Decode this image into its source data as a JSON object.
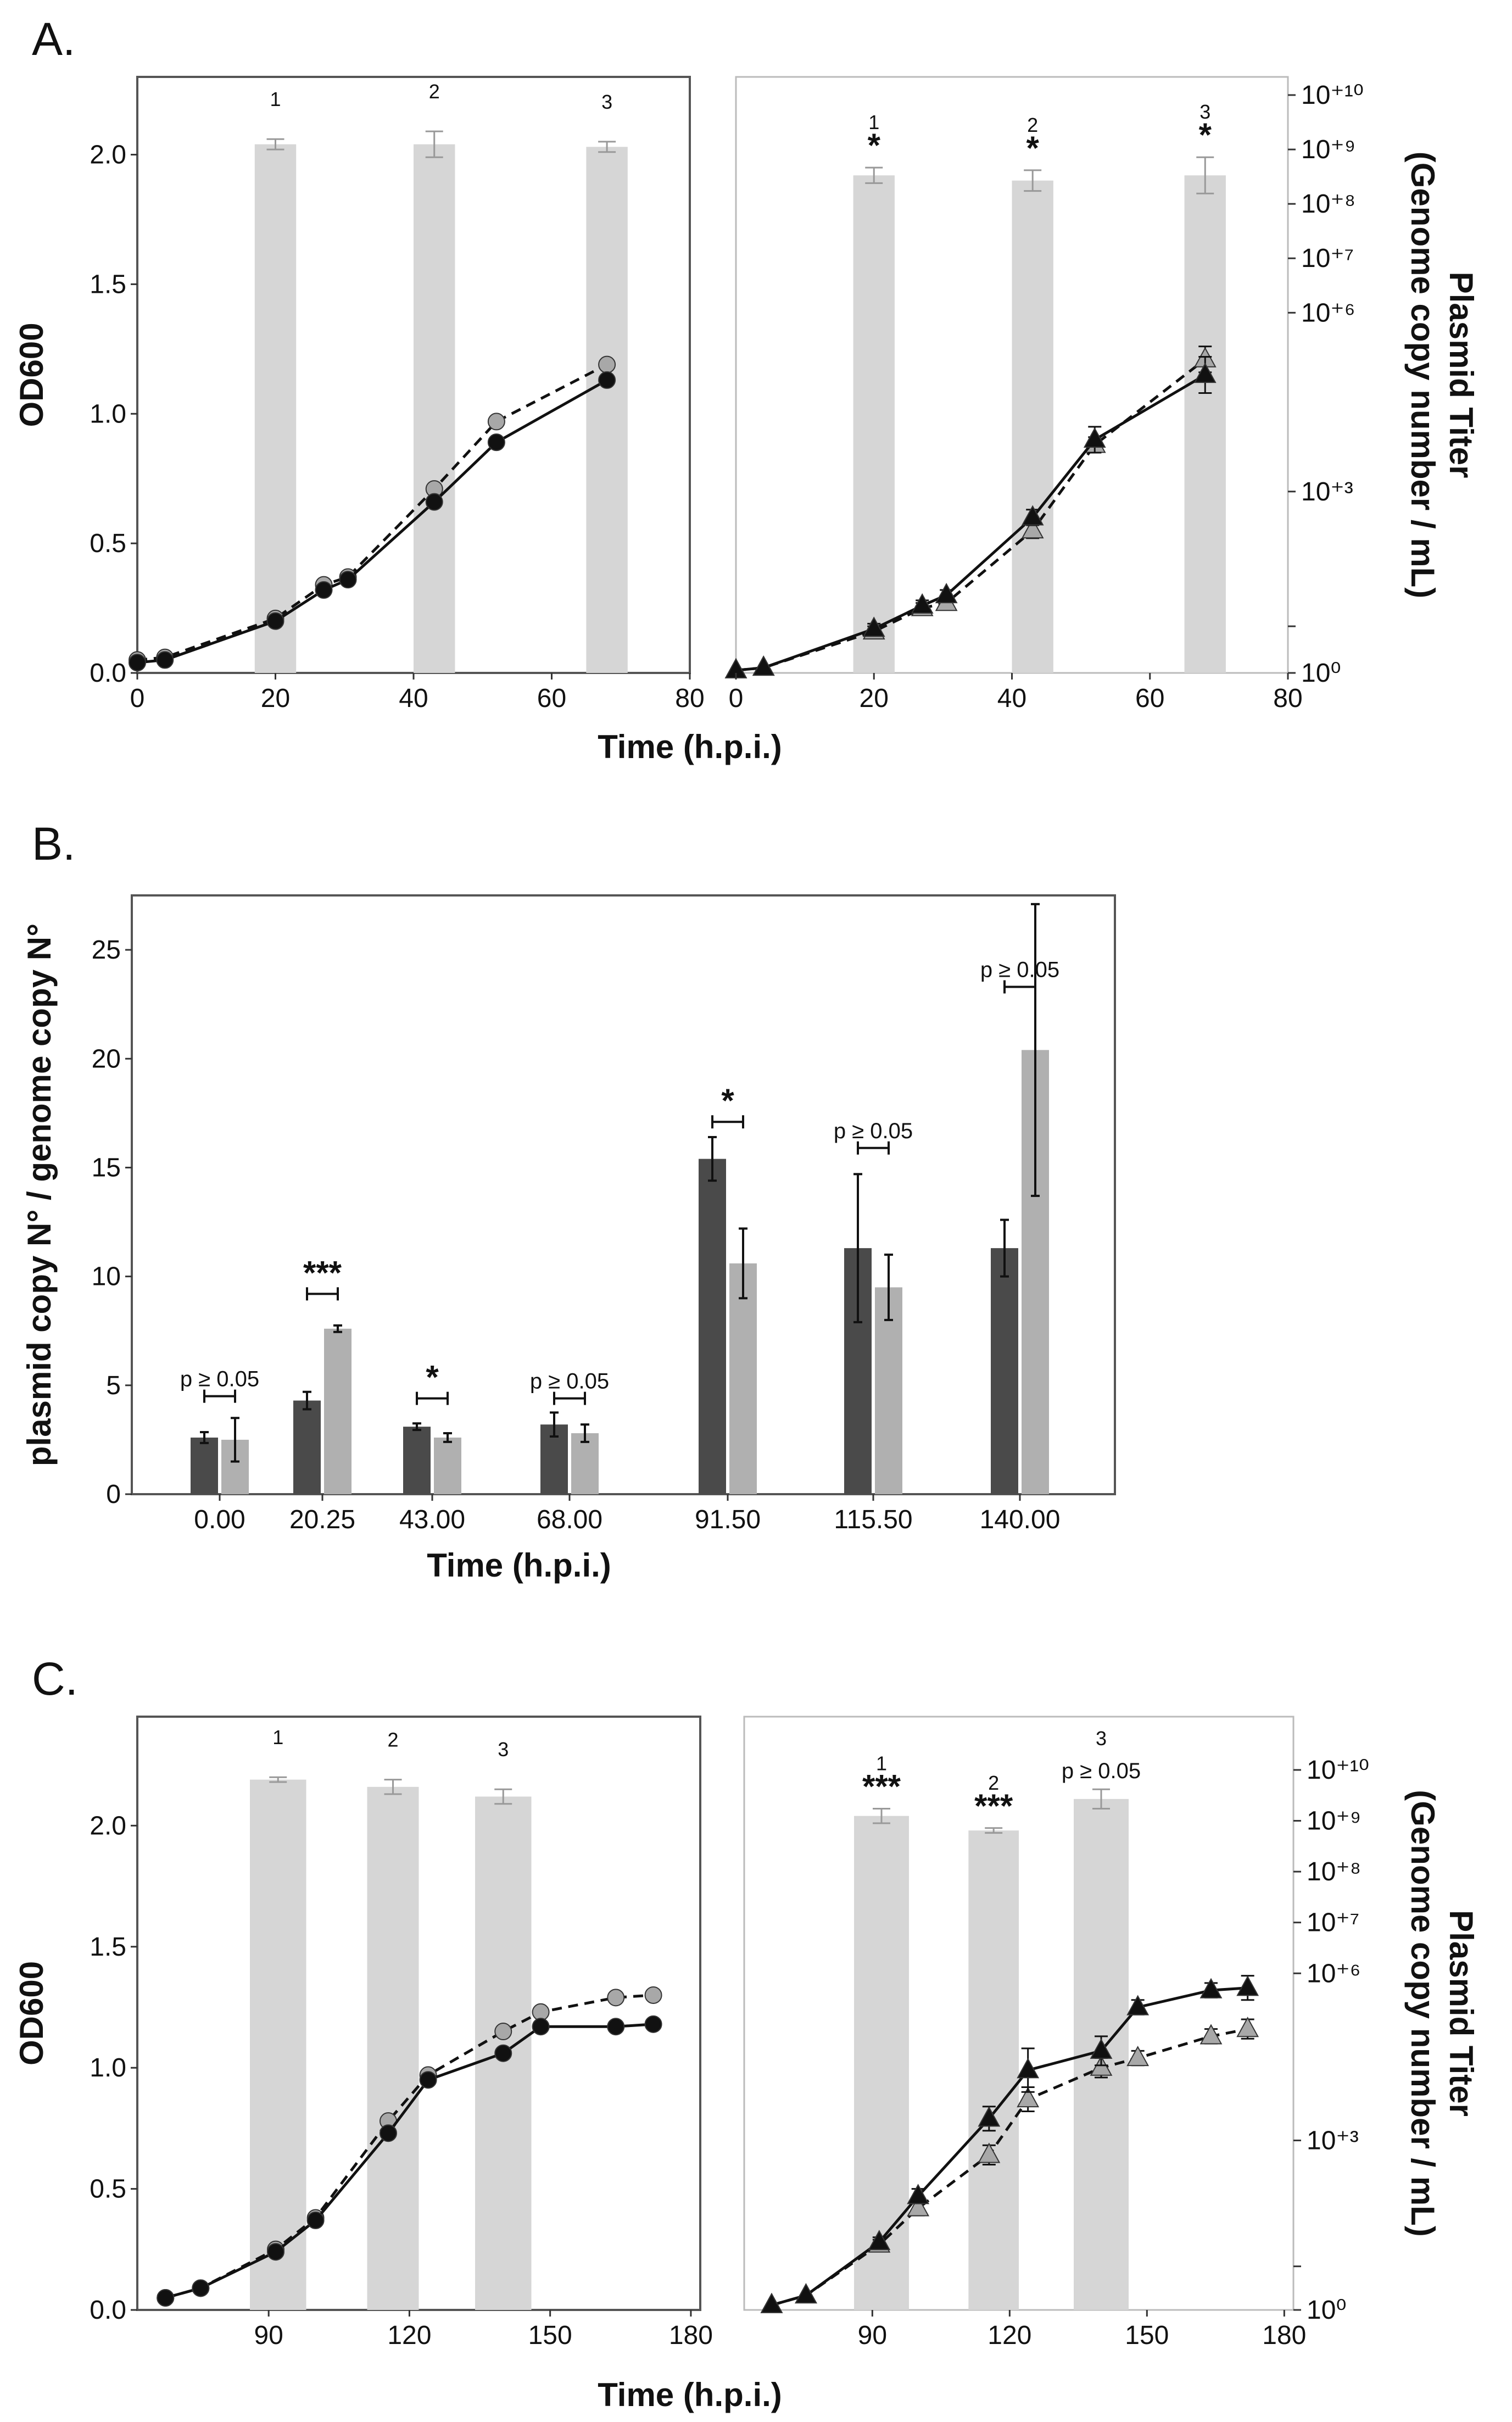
{
  "chart_data": [
    {
      "id": "A-left",
      "type": "line",
      "panel": "A.",
      "xlim": [
        0,
        80
      ],
      "ylim": [
        0,
        2.3
      ],
      "xticks": [
        0,
        20,
        40,
        60,
        80
      ],
      "yticks": [
        0.0,
        0.5,
        1.0,
        1.5,
        2.0
      ],
      "xtick_labels": [
        "0",
        "20",
        "40",
        "60",
        "80"
      ],
      "ytick_labels": [
        "0.0",
        "0.5",
        "1.0",
        "1.5",
        "2.0"
      ],
      "ylabel": "OD600",
      "bars": [
        {
          "x_start": 17,
          "x_end": 23,
          "value": 2.04,
          "err": 0.02,
          "label": "1"
        },
        {
          "x_start": 40,
          "x_end": 46,
          "value": 2.04,
          "err": 0.05,
          "label": "2"
        },
        {
          "x_start": 65,
          "x_end": 71,
          "value": 2.03,
          "err": 0.02,
          "label": "3"
        }
      ],
      "series": [
        {
          "name": "grey dashed",
          "style": "dashed",
          "marker": "circle",
          "color": "#a8a8a8",
          "x": [
            0,
            4,
            20,
            27,
            30.5,
            43,
            52,
            68
          ],
          "y": [
            0.05,
            0.06,
            0.21,
            0.34,
            0.37,
            0.71,
            0.97,
            1.19
          ]
        },
        {
          "name": "black solid",
          "style": "solid",
          "marker": "circle",
          "color": "#111111",
          "x": [
            0,
            4,
            20,
            27,
            30.5,
            43,
            52,
            68
          ],
          "y": [
            0.04,
            0.05,
            0.2,
            0.32,
            0.36,
            0.66,
            0.89,
            1.13
          ]
        }
      ]
    },
    {
      "id": "A-right",
      "type": "line",
      "panel": "A.",
      "xlim": [
        0,
        80
      ],
      "ylim": [
        0,
        2.3
      ],
      "xticks": [
        0,
        20,
        40,
        60,
        80
      ],
      "xtick_labels": [
        "0",
        "20",
        "40",
        "60",
        "80"
      ],
      "right_ticks": [
        0,
        0.18,
        0.7,
        1.39,
        1.6,
        1.81,
        2.02,
        2.23
      ],
      "right_labels": [
        "10⁰",
        "10⁺³",
        "10⁺⁶",
        "10⁺⁷",
        "10⁺⁸",
        "10⁺⁹",
        "10⁺¹⁰"
      ],
      "right_label_ticks": [
        0,
        0.7,
        1.39,
        1.6,
        1.81,
        2.02,
        2.23
      ],
      "ylabel_right_1": "Plasmid Titer",
      "ylabel_right_2": "(Genome copy number / mL)",
      "bars": [
        {
          "x_start": 17,
          "x_end": 23,
          "value": 1.92,
          "err": 0.03,
          "label": "1",
          "sig": "*"
        },
        {
          "x_start": 40,
          "x_end": 46,
          "value": 1.9,
          "err": 0.04,
          "label": "2",
          "sig": "*"
        },
        {
          "x_start": 65,
          "x_end": 71,
          "value": 1.92,
          "err": 0.07,
          "label": "3",
          "sig": "*"
        }
      ],
      "series": [
        {
          "name": "grey dashed",
          "style": "dashed",
          "marker": "triangle",
          "color": "#a8a8a8",
          "x": [
            0,
            4,
            20,
            27,
            30.5,
            43,
            52,
            68
          ],
          "y": [
            0.01,
            0.02,
            0.16,
            0.25,
            0.27,
            0.55,
            0.88,
            1.21
          ],
          "err": [
            0,
            0,
            0.02,
            0.02,
            0.02,
            0.03,
            0.03,
            0.05
          ]
        },
        {
          "name": "black solid",
          "style": "solid",
          "marker": "triangle",
          "color": "#111111",
          "x": [
            0,
            4,
            20,
            27,
            30.5,
            43,
            52,
            68
          ],
          "y": [
            0.01,
            0.02,
            0.17,
            0.26,
            0.3,
            0.6,
            0.9,
            1.15
          ],
          "err": [
            0,
            0,
            0.02,
            0.02,
            0.02,
            0.03,
            0.05,
            0.07
          ]
        }
      ]
    },
    {
      "id": "B",
      "type": "bar",
      "panel": "B.",
      "categories": [
        "0.00",
        "20.25",
        "43.00",
        "68.00",
        "91.50",
        "115.50",
        "140.00"
      ],
      "ylim": [
        0,
        27.5
      ],
      "yticks": [
        0,
        5,
        10,
        15,
        20,
        25
      ],
      "ytick_labels": [
        "0",
        "5",
        "10",
        "15",
        "20",
        "25"
      ],
      "ylabel": "plasmid copy N° / genome copy N°",
      "xlabel": "Time (h.p.i.)",
      "series": [
        {
          "name": "dark",
          "color": "#4a4a4a",
          "values": [
            2.6,
            4.3,
            3.1,
            3.2,
            15.4,
            11.3,
            11.3
          ],
          "err": [
            0.25,
            0.4,
            0.15,
            0.55,
            1.0,
            3.4,
            1.3
          ]
        },
        {
          "name": "light",
          "color": "#b0b0b0",
          "values": [
            2.5,
            7.6,
            2.6,
            2.8,
            10.6,
            9.5,
            20.4
          ],
          "err": [
            1.0,
            0.15,
            0.2,
            0.4,
            1.6,
            1.5,
            6.7
          ]
        }
      ],
      "significance": [
        {
          "label": "p ≥ 0.05",
          "y": 4.5,
          "bold": false
        },
        {
          "label": "***",
          "y": 9.2,
          "bold": true
        },
        {
          "label": "*",
          "y": 4.4,
          "bold": true
        },
        {
          "label": "p ≥ 0.05",
          "y": 4.4,
          "bold": false
        },
        {
          "label": "*",
          "y": 17.1,
          "bold": true
        },
        {
          "label": "p ≥ 0.05",
          "y": 15.9,
          "bold": false
        },
        {
          "label": "p ≥ 0.05",
          "y": 23.3,
          "bold": false
        }
      ]
    },
    {
      "id": "C-left",
      "type": "line",
      "panel": "C.",
      "xlim": [
        62,
        182
      ],
      "ylim": [
        0,
        2.45
      ],
      "xticks": [
        90,
        120,
        150,
        180
      ],
      "yticks": [
        0.0,
        0.5,
        1.0,
        1.5,
        2.0
      ],
      "xtick_labels": [
        "90",
        "120",
        "150",
        "180"
      ],
      "ytick_labels": [
        "0.0",
        "0.5",
        "1.0",
        "1.5",
        "2.0"
      ],
      "ylabel": "OD600",
      "bars": [
        {
          "x_start": 86,
          "x_end": 98,
          "value": 2.19,
          "err": 0.01,
          "label": "1"
        },
        {
          "x_start": 111,
          "x_end": 122,
          "value": 2.16,
          "err": 0.03,
          "label": "2"
        },
        {
          "x_start": 134,
          "x_end": 146,
          "value": 2.12,
          "err": 0.03,
          "label": "3"
        }
      ],
      "series": [
        {
          "name": "grey dashed",
          "style": "dashed",
          "marker": "circle",
          "color": "#a8a8a8",
          "x": [
            68,
            75.5,
            91.5,
            100,
            115.5,
            124,
            140,
            148,
            164,
            172
          ],
          "y": [
            0.05,
            0.09,
            0.25,
            0.38,
            0.78,
            0.97,
            1.15,
            1.23,
            1.29,
            1.3
          ]
        },
        {
          "name": "black solid",
          "style": "solid",
          "marker": "circle",
          "color": "#111111",
          "x": [
            68,
            75.5,
            91.5,
            100,
            115.5,
            124,
            140,
            148,
            164,
            172
          ],
          "y": [
            0.05,
            0.09,
            0.24,
            0.37,
            0.73,
            0.95,
            1.06,
            1.17,
            1.17,
            1.18
          ]
        }
      ]
    },
    {
      "id": "C-right",
      "type": "line",
      "panel": "C.",
      "xlim": [
        62,
        182
      ],
      "ylim": [
        0,
        2.45
      ],
      "xticks": [
        90,
        120,
        150,
        180
      ],
      "xtick_labels": [
        "90",
        "120",
        "150",
        "180"
      ],
      "right_ticks": [
        0,
        0.18,
        0.7,
        1.39,
        1.6,
        1.81,
        2.02,
        2.23
      ],
      "right_labels": [
        "10⁰",
        "10⁺³",
        "10⁺⁶",
        "10⁺⁷",
        "10⁺⁸",
        "10⁺⁹",
        "10⁺¹⁰"
      ],
      "right_label_ticks": [
        0,
        0.7,
        1.39,
        1.6,
        1.81,
        2.02,
        2.23
      ],
      "ylabel_right_1": "Plasmid Titer",
      "ylabel_right_2": "(Genome copy number / mL)",
      "bars": [
        {
          "x_start": 86,
          "x_end": 98,
          "value": 2.04,
          "err": 0.03,
          "label": "1",
          "sig": "***"
        },
        {
          "x_start": 111,
          "x_end": 122,
          "value": 1.98,
          "err": 0.01,
          "label": "2",
          "sig": "***"
        },
        {
          "x_start": 134,
          "x_end": 146,
          "value": 2.11,
          "err": 0.04,
          "label": "3",
          "sig": "p ≥ 0.05"
        }
      ],
      "series": [
        {
          "name": "grey dashed",
          "style": "dashed",
          "marker": "triangle",
          "color": "#a8a8a8",
          "x": [
            68,
            75.5,
            91.5,
            100,
            115.5,
            124,
            140,
            148,
            164,
            172
          ],
          "y": [
            0.02,
            0.06,
            0.27,
            0.42,
            0.64,
            0.87,
            1.0,
            1.04,
            1.13,
            1.16
          ],
          "err": [
            0,
            0,
            0.02,
            0.03,
            0.04,
            0.05,
            0.04,
            0.03,
            0.03,
            0.04
          ]
        },
        {
          "name": "black solid",
          "style": "solid",
          "marker": "triangle",
          "color": "#111111",
          "x": [
            68,
            75.5,
            91.5,
            100,
            115.5,
            124,
            140,
            148,
            164,
            172
          ],
          "y": [
            0.02,
            0.06,
            0.28,
            0.47,
            0.79,
            0.99,
            1.07,
            1.25,
            1.32,
            1.33
          ],
          "err": [
            0,
            0,
            0.02,
            0.03,
            0.05,
            0.09,
            0.06,
            0.03,
            0.03,
            0.05
          ]
        }
      ]
    }
  ],
  "labels": {
    "panel_a": "A.",
    "panel_b": "B.",
    "panel_c": "C.",
    "xlabel_time": "Time (h.p.i.)"
  }
}
